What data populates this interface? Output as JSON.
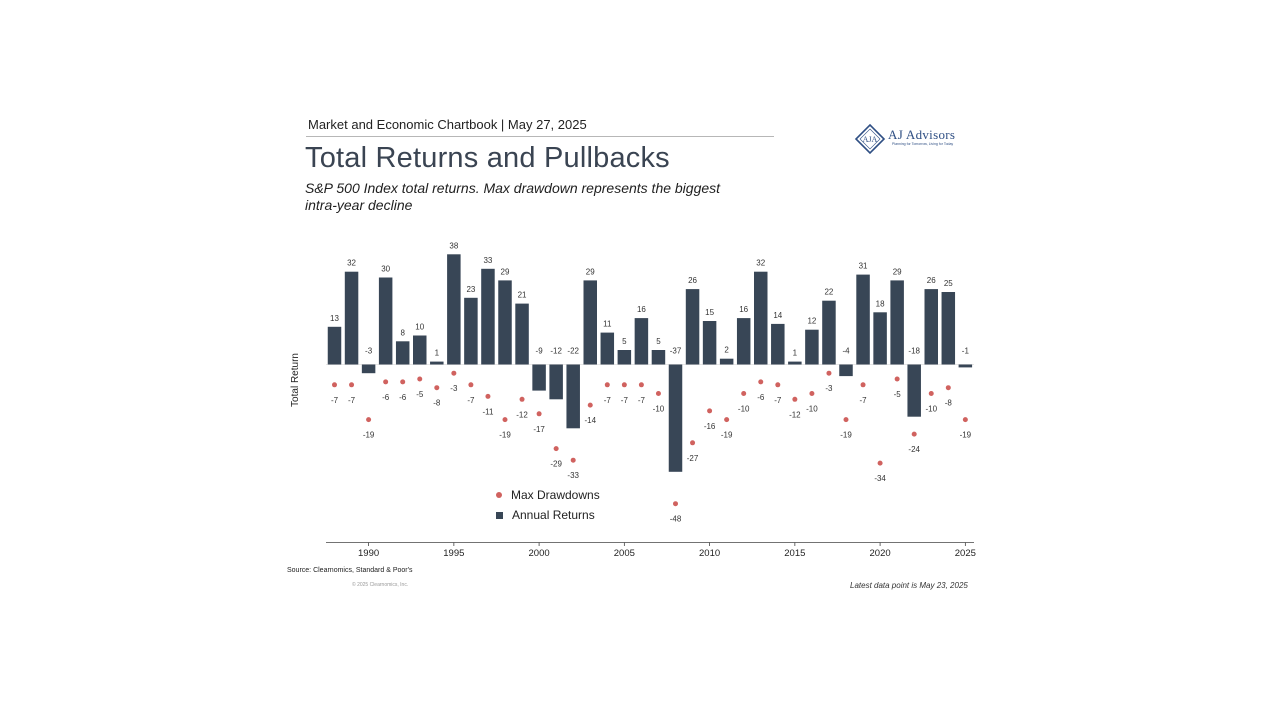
{
  "header": {
    "chartbook": "Market and Economic Chartbook | May 27, 2025",
    "title": "Total Returns and Pullbacks",
    "subtitle": "S&P 500 Index total returns. Max drawdown represents the biggest intra-year decline"
  },
  "logo": {
    "name": "AJ Advisors",
    "tagline": "Planning for Tomorrow, Living for Today",
    "monogram": "AJA"
  },
  "footer": {
    "source": "Source: Clearnomics, Standard & Poor's",
    "copyright": "© 2025 Clearnomics, Inc.",
    "latest": "Latest data point is May 23, 2025"
  },
  "colors": {
    "bar": "#384656",
    "dot": "#d0625f",
    "title": "#3a4452",
    "axis": "#444444"
  },
  "chart_data": {
    "type": "bar",
    "ylabel": "Total Return",
    "xlabel": "",
    "x_ticks": [
      1990,
      1995,
      2000,
      2005,
      2010,
      2015,
      2020,
      2025
    ],
    "ylim": [
      -50,
      40
    ],
    "legend": {
      "placement": "bottom-center"
    },
    "categories": [
      1988,
      1989,
      1990,
      1991,
      1992,
      1993,
      1994,
      1995,
      1996,
      1997,
      1998,
      1999,
      2000,
      2001,
      2002,
      2003,
      2004,
      2005,
      2006,
      2007,
      2008,
      2009,
      2010,
      2011,
      2012,
      2013,
      2014,
      2015,
      2016,
      2017,
      2018,
      2019,
      2020,
      2021,
      2022,
      2023,
      2024,
      2025
    ],
    "series": [
      {
        "name": "Annual Returns",
        "kind": "bar",
        "values": [
          13,
          32,
          -3,
          30,
          8,
          10,
          1,
          38,
          23,
          33,
          29,
          21,
          -9,
          -12,
          -22,
          29,
          11,
          5,
          16,
          5,
          -37,
          26,
          15,
          2,
          16,
          32,
          14,
          1,
          12,
          22,
          -4,
          31,
          18,
          29,
          -18,
          26,
          25,
          -1
        ]
      },
      {
        "name": "Max Drawdowns",
        "kind": "dot",
        "values": [
          -7,
          -7,
          -19,
          -6,
          -6,
          -5,
          -8,
          -3,
          -7,
          -11,
          -19,
          -12,
          -17,
          -29,
          -33,
          -14,
          -7,
          -7,
          -7,
          -10,
          -48,
          -27,
          -16,
          -19,
          -10,
          -6,
          -7,
          -12,
          -10,
          -3,
          -19,
          -7,
          -34,
          -5,
          -24,
          -10,
          -8,
          -19
        ]
      }
    ]
  }
}
